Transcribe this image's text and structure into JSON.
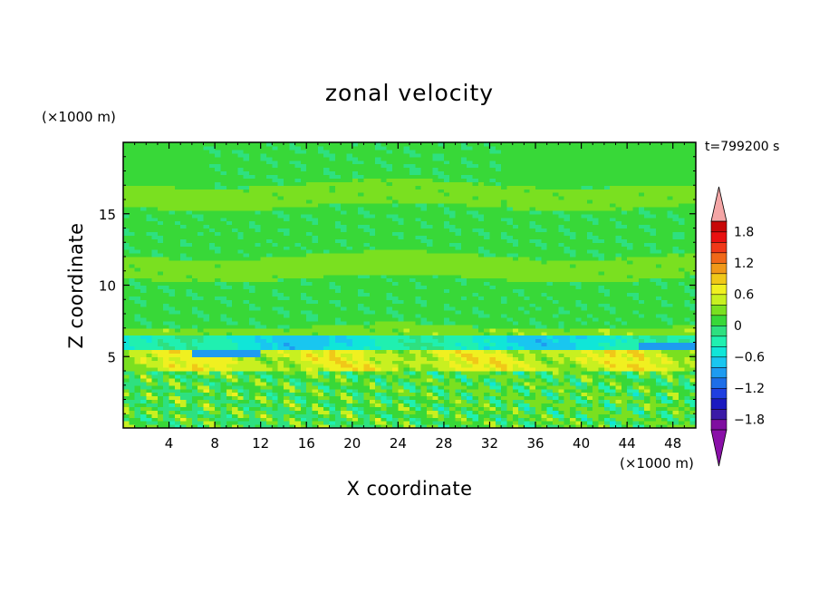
{
  "chart_data": {
    "type": "heatmap",
    "title": "zonal velocity",
    "xlabel": "X coordinate",
    "ylabel": "Z coordinate",
    "x_unit": "(×1000 m)",
    "y_unit": "(×1000 m)",
    "time_label": "t=799200 s",
    "xlim": [
      0,
      50
    ],
    "ylim": [
      0,
      20
    ],
    "x_ticks": [
      4,
      8,
      12,
      16,
      20,
      24,
      28,
      32,
      36,
      40,
      44,
      48
    ],
    "y_ticks": [
      5,
      10,
      15
    ],
    "colorbar": {
      "min": -2.0,
      "max": 2.0,
      "step": 0.2,
      "tick_values": [
        -1.8,
        -1.2,
        -0.6,
        0,
        0.6,
        1.2,
        1.8
      ],
      "tick_labels": [
        "−1.8",
        "−1.2",
        "−0.6",
        "0",
        "0.6",
        "1.2",
        "1.8"
      ],
      "extend": "both",
      "colors": [
        "#7f0fa0",
        "#3b1aa6",
        "#1c1ac0",
        "#1f3fe0",
        "#1d6ee8",
        "#1e9bf0",
        "#19c6f0",
        "#10e6d8",
        "#20f0b0",
        "#2ee080",
        "#38d838",
        "#7ae020",
        "#c8f020",
        "#f0f020",
        "#f0c818",
        "#f09818",
        "#f06818",
        "#f03818",
        "#e81010",
        "#c80808"
      ],
      "under_color": "#8a10a8",
      "over_color": "#f4a6a6"
    },
    "field_description_bands": [
      {
        "z_range": [
          0,
          4
        ],
        "mean": 0.1
      },
      {
        "z_range": [
          4,
          5.6
        ],
        "mean": 0.6
      },
      {
        "z_range": [
          5.6,
          6.4
        ],
        "mean": -0.5
      },
      {
        "z_range": [
          6.4,
          20
        ],
        "mean": 0.05
      }
    ]
  }
}
